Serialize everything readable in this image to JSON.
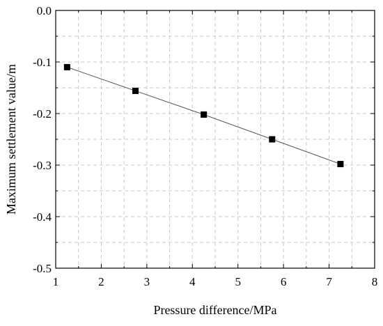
{
  "chart_data": {
    "type": "line",
    "title": "",
    "xlabel": "Pressure difference/MPa",
    "ylabel": "Maximum settlement value/m",
    "xlim": [
      1,
      8
    ],
    "ylim": [
      -0.5,
      0.0
    ],
    "x_ticks": [
      1,
      2,
      3,
      4,
      5,
      6,
      7,
      8
    ],
    "x_tick_labels": [
      "1",
      "2",
      "3",
      "4",
      "5",
      "6",
      "7",
      "8"
    ],
    "y_ticks": [
      0.0,
      -0.1,
      -0.2,
      -0.3,
      -0.4,
      -0.5
    ],
    "y_tick_labels": [
      "0.0",
      "-0.1",
      "-0.2",
      "-0.3",
      "-0.4",
      "-0.5"
    ],
    "grid": true,
    "grid_style": "dashed",
    "marker": "square",
    "line_color": "#555555",
    "marker_color": "#000000",
    "series": [
      {
        "x": [
          1.25,
          2.75,
          4.25,
          5.75,
          7.25
        ],
        "y": [
          -0.11,
          -0.156,
          -0.202,
          -0.25,
          -0.298
        ]
      }
    ]
  }
}
